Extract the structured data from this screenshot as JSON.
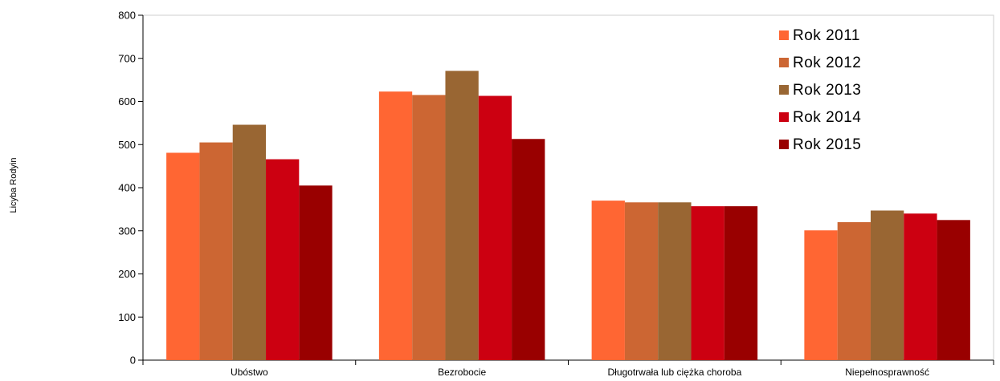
{
  "chart_data": {
    "type": "bar",
    "title": "",
    "xlabel": "",
    "ylabel": "Licyba Rodyin",
    "ylim": [
      0,
      800
    ],
    "yticks": [
      0,
      100,
      200,
      300,
      400,
      500,
      600,
      700,
      800
    ],
    "grid": false,
    "legend_position": "top-right",
    "categories": [
      "Ubóstwo",
      "Bezrobocie",
      "Długotrwała lub ciężka choroba",
      "Niepełnosprawność"
    ],
    "series": [
      {
        "name": "Rok 2011",
        "color": "#ff6633",
        "values": [
          481,
          623,
          370,
          301
        ]
      },
      {
        "name": "Rok 2012",
        "color": "#cc6633",
        "values": [
          505,
          615,
          366,
          320
        ]
      },
      {
        "name": "Rok 2013",
        "color": "#996633",
        "values": [
          546,
          671,
          366,
          347
        ]
      },
      {
        "name": "Rok 2014",
        "color": "#cc0011",
        "values": [
          466,
          613,
          357,
          340
        ]
      },
      {
        "name": "Rok 2015",
        "color": "#990000",
        "values": [
          405,
          513,
          357,
          325
        ]
      }
    ]
  }
}
